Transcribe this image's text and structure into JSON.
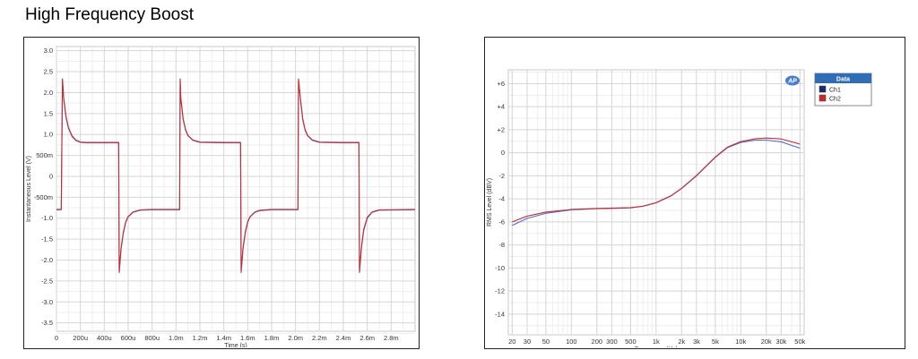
{
  "page": {
    "title": "High Frequency Boost"
  },
  "chart_data": [
    {
      "type": "line",
      "title": "",
      "xlabel": "Time (s)",
      "ylabel": "Instantaneous Level (V)",
      "xlim": [
        0,
        0.003
      ],
      "ylim": [
        -3.7,
        3.1
      ],
      "grid": true,
      "x_ticks": [
        {
          "v": 0,
          "label": "0"
        },
        {
          "v": 0.0002,
          "label": "200u"
        },
        {
          "v": 0.0004,
          "label": "400u"
        },
        {
          "v": 0.0006,
          "label": "600u"
        },
        {
          "v": 0.0008,
          "label": "800u"
        },
        {
          "v": 0.001,
          "label": "1.0m"
        },
        {
          "v": 0.0012,
          "label": "1.2m"
        },
        {
          "v": 0.0014,
          "label": "1.4m"
        },
        {
          "v": 0.0016,
          "label": "1.6m"
        },
        {
          "v": 0.0018,
          "label": "1.8m"
        },
        {
          "v": 0.002,
          "label": "2.0m"
        },
        {
          "v": 0.0022,
          "label": "2.2m"
        },
        {
          "v": 0.0024,
          "label": "2.4m"
        },
        {
          "v": 0.0026,
          "label": "2.6m"
        },
        {
          "v": 0.0028,
          "label": "2.8m"
        }
      ],
      "y_ticks": [
        {
          "v": 3.0,
          "label": "3.0"
        },
        {
          "v": 2.5,
          "label": "2.5"
        },
        {
          "v": 2.0,
          "label": "2.0"
        },
        {
          "v": 1.5,
          "label": "1.5"
        },
        {
          "v": 1.0,
          "label": "1.0"
        },
        {
          "v": 0.5,
          "label": "500m"
        },
        {
          "v": 0,
          "label": "0"
        },
        {
          "v": -0.5,
          "label": "-500m"
        },
        {
          "v": -1.0,
          "label": "-1.0"
        },
        {
          "v": -1.5,
          "label": "-1.5"
        },
        {
          "v": -2.0,
          "label": "-2.0"
        },
        {
          "v": -2.5,
          "label": "-2.5"
        },
        {
          "v": -3.0,
          "label": "-3.0"
        },
        {
          "v": -3.5,
          "label": "-3.5"
        }
      ],
      "series": [
        {
          "color": "#4a6fd6",
          "x": [
            0,
            4e-05,
            5e-05,
            6e-05,
            8e-05,
            0.0001,
            0.00013,
            0.00016,
            0.0002,
            0.00025,
            0.0004,
            0.00052,
            0.000525,
            0.00054,
            0.00056,
            0.00058,
            0.0006,
            0.00064,
            0.0007,
            0.0008,
            0.001,
            0.00103,
            0.001035,
            0.00104,
            0.00106,
            0.00108,
            0.0011,
            0.00114,
            0.0012,
            0.0014,
            0.00154,
            0.001545,
            0.00156,
            0.00158,
            0.0016,
            0.00162,
            0.00166,
            0.0017,
            0.0018,
            0.00202,
            0.002025,
            0.00204,
            0.00206,
            0.00208,
            0.0021,
            0.00214,
            0.0022,
            0.0024,
            0.00253,
            0.002535,
            0.00255,
            0.00257,
            0.0026,
            0.00264,
            0.0027,
            0.003
          ],
          "y": [
            -0.8,
            -0.8,
            2.3,
            1.85,
            1.4,
            1.15,
            0.95,
            0.86,
            0.81,
            0.8,
            0.8,
            0.8,
            -2.3,
            -1.75,
            -1.35,
            -1.1,
            -0.97,
            -0.86,
            -0.81,
            -0.8,
            -0.8,
            -0.8,
            2.3,
            1.85,
            1.35,
            1.1,
            0.97,
            0.86,
            0.81,
            0.8,
            0.8,
            -2.3,
            -1.75,
            -1.35,
            -1.1,
            -0.97,
            -0.86,
            -0.82,
            -0.8,
            -0.8,
            2.3,
            1.85,
            1.35,
            1.1,
            0.97,
            0.86,
            0.81,
            0.8,
            0.8,
            -2.3,
            -1.75,
            -1.3,
            -1.0,
            -0.86,
            -0.81,
            -0.8
          ]
        },
        {
          "color": "#cc2a2a",
          "x": [
            0,
            4e-05,
            5e-05,
            6e-05,
            8e-05,
            0.0001,
            0.00013,
            0.00016,
            0.0002,
            0.00025,
            0.0004,
            0.00052,
            0.000525,
            0.00054,
            0.00056,
            0.00058,
            0.0006,
            0.00064,
            0.0007,
            0.0008,
            0.001,
            0.00103,
            0.001035,
            0.00104,
            0.00106,
            0.00108,
            0.0011,
            0.00114,
            0.0012,
            0.0014,
            0.00154,
            0.001545,
            0.00156,
            0.00158,
            0.0016,
            0.00162,
            0.00166,
            0.0017,
            0.0018,
            0.00202,
            0.002025,
            0.00204,
            0.00206,
            0.00208,
            0.0021,
            0.00214,
            0.0022,
            0.0024,
            0.00253,
            0.002535,
            0.00255,
            0.00257,
            0.0026,
            0.00264,
            0.0027,
            0.003
          ],
          "y": [
            -0.79,
            -0.79,
            2.33,
            1.88,
            1.43,
            1.17,
            0.97,
            0.87,
            0.82,
            0.81,
            0.81,
            0.81,
            -2.27,
            -1.72,
            -1.32,
            -1.08,
            -0.96,
            -0.85,
            -0.8,
            -0.79,
            -0.79,
            -0.79,
            2.33,
            1.88,
            1.38,
            1.12,
            0.98,
            0.87,
            0.82,
            0.81,
            0.81,
            -2.27,
            -1.72,
            -1.32,
            -1.08,
            -0.96,
            -0.85,
            -0.81,
            -0.79,
            -0.79,
            2.33,
            1.88,
            1.38,
            1.12,
            0.98,
            0.87,
            0.82,
            0.81,
            0.81,
            -2.27,
            -1.72,
            -1.27,
            -0.98,
            -0.85,
            -0.8,
            -0.79
          ]
        }
      ]
    },
    {
      "type": "line",
      "title": "",
      "xlabel": "Frequency (Hz)",
      "ylabel": "RMS Level (dBV)",
      "x_scale": "log",
      "xlim": [
        18,
        56000
      ],
      "ylim": [
        -15.8,
        7.2
      ],
      "grid": true,
      "x_ticks": [
        {
          "v": 20,
          "label": "20"
        },
        {
          "v": 30,
          "label": "30"
        },
        {
          "v": 50,
          "label": "50"
        },
        {
          "v": 100,
          "label": "100"
        },
        {
          "v": 200,
          "label": "200"
        },
        {
          "v": 300,
          "label": "300"
        },
        {
          "v": 500,
          "label": "500"
        },
        {
          "v": 1000,
          "label": "1k"
        },
        {
          "v": 2000,
          "label": "2k"
        },
        {
          "v": 3000,
          "label": "3k"
        },
        {
          "v": 5000,
          "label": "5k"
        },
        {
          "v": 10000,
          "label": "10k"
        },
        {
          "v": 20000,
          "label": "20k"
        },
        {
          "v": 30000,
          "label": "30k"
        },
        {
          "v": 50000,
          "label": "50k"
        }
      ],
      "y_ticks": [
        {
          "v": 6,
          "label": "+6"
        },
        {
          "v": 4,
          "label": "+4"
        },
        {
          "v": 2,
          "label": "+2"
        },
        {
          "v": 0,
          "label": "0"
        },
        {
          "v": -2,
          "label": "-2"
        },
        {
          "v": -4,
          "label": "-4"
        },
        {
          "v": -6,
          "label": "-6"
        },
        {
          "v": -8,
          "label": "-8"
        },
        {
          "v": -10,
          "label": "-10"
        },
        {
          "v": -12,
          "label": "-12"
        },
        {
          "v": -14,
          "label": "-14"
        }
      ],
      "legend": {
        "title": "Data",
        "position": "top-right-outside",
        "entries": [
          {
            "name": "Ch1",
            "color": "#1a2a6e"
          },
          {
            "name": "Ch2",
            "color": "#cc2a2a"
          }
        ]
      },
      "logo_text": "AP",
      "series": [
        {
          "name": "Ch1",
          "color": "#4a6fd6",
          "x": [
            20,
            30,
            50,
            100,
            200,
            300,
            500,
            700,
            1000,
            1500,
            2000,
            3000,
            5000,
            7000,
            10000,
            15000,
            20000,
            30000,
            50000
          ],
          "y": [
            -6.3,
            -5.7,
            -5.25,
            -4.95,
            -4.85,
            -4.83,
            -4.78,
            -4.65,
            -4.35,
            -3.75,
            -3.1,
            -2.0,
            -0.4,
            0.45,
            0.9,
            1.1,
            1.1,
            0.95,
            0.4
          ]
        },
        {
          "name": "Ch2",
          "color": "#cc2a2a",
          "x": [
            20,
            30,
            50,
            100,
            200,
            300,
            500,
            700,
            1000,
            1500,
            2000,
            3000,
            5000,
            7000,
            10000,
            15000,
            20000,
            30000,
            50000
          ],
          "y": [
            -6.0,
            -5.5,
            -5.15,
            -4.92,
            -4.83,
            -4.8,
            -4.76,
            -4.63,
            -4.33,
            -3.73,
            -3.08,
            -1.97,
            -0.37,
            0.5,
            0.97,
            1.22,
            1.28,
            1.2,
            0.75
          ]
        }
      ]
    }
  ]
}
